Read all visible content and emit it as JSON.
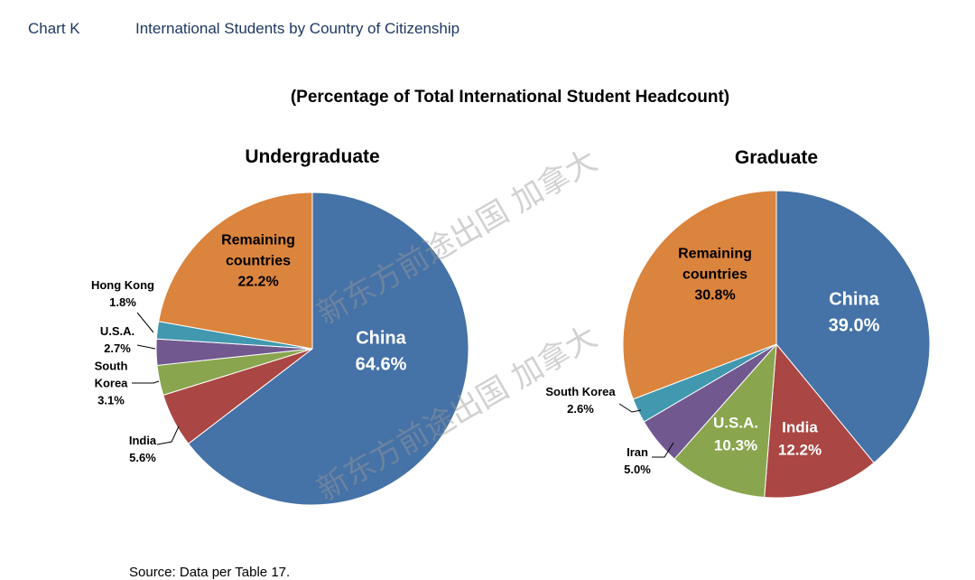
{
  "header": {
    "chart_label": "Chart K",
    "title": "International Students by Country of Citizenship"
  },
  "subtitle": "(Percentage of Total International Student Headcount)",
  "source": "Source:  Data per Table 17.",
  "watermark": [
    "新东方前途出国 加拿大",
    "新东方前途出国 加拿大"
  ],
  "chart_data": [
    {
      "type": "pie",
      "title": "Undergraduate",
      "slices": [
        {
          "label": "China",
          "value": 64.6,
          "display": "64.6%",
          "color": "#4572a7",
          "label_mode": "inside"
        },
        {
          "label": "India",
          "value": 5.6,
          "display": "5.6%",
          "color": "#aa4643",
          "label_mode": "outside"
        },
        {
          "label": "South Korea",
          "label_lines": [
            "South",
            "Korea"
          ],
          "value": 3.1,
          "display": "3.1%",
          "color": "#89a54e",
          "label_mode": "outside"
        },
        {
          "label": "U.S.A.",
          "value": 2.7,
          "display": "2.7%",
          "color": "#71588f",
          "label_mode": "outside"
        },
        {
          "label": "Hong Kong",
          "value": 1.8,
          "display": "1.8%",
          "color": "#4198af",
          "label_mode": "outside"
        },
        {
          "label": "Remaining countries",
          "label_lines": [
            "Remaining",
            "countries"
          ],
          "value": 22.2,
          "display": "22.2%",
          "color": "#db843d",
          "label_mode": "inside-dark"
        }
      ]
    },
    {
      "type": "pie",
      "title": "Graduate",
      "slices": [
        {
          "label": "China",
          "value": 39.0,
          "display": "39.0%",
          "color": "#4572a7",
          "label_mode": "inside"
        },
        {
          "label": "India",
          "value": 12.2,
          "display": "12.2%",
          "color": "#aa4643",
          "label_mode": "inside"
        },
        {
          "label": "U.S.A.",
          "value": 10.3,
          "display": "10.3%",
          "color": "#89a54e",
          "label_mode": "inside"
        },
        {
          "label": "Iran",
          "value": 5.0,
          "display": "5.0%",
          "color": "#71588f",
          "label_mode": "outside"
        },
        {
          "label": "South Korea",
          "value": 2.6,
          "display": "2.6%",
          "color": "#4198af",
          "label_mode": "outside"
        },
        {
          "label": "Remaining countries",
          "label_lines": [
            "Remaining",
            "countries"
          ],
          "value": 30.8,
          "display": "30.8%",
          "color": "#db843d",
          "label_mode": "inside-dark"
        }
      ]
    }
  ]
}
